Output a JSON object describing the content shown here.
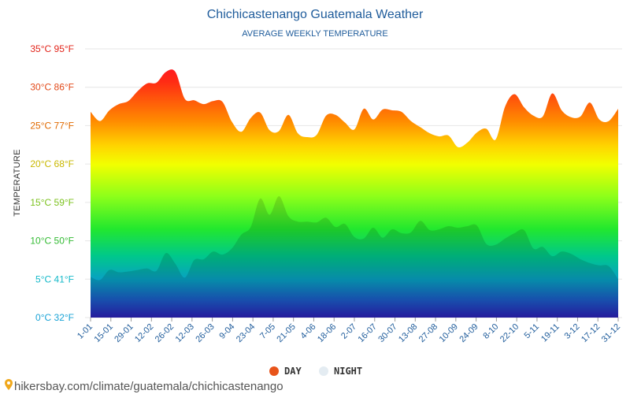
{
  "chart_data": {
    "type": "area",
    "title": "Chichicastenango Guatemala Weather",
    "subtitle": "AVERAGE WEEKLY TEMPERATURE",
    "ylabel": "TEMPERATURE",
    "ylim": [
      0,
      35
    ],
    "y_ticks": [
      {
        "value": 0,
        "label": "0°C 32°F",
        "color": "#1aa3d6"
      },
      {
        "value": 5,
        "label": "5°C 41°F",
        "color": "#14b9c9"
      },
      {
        "value": 10,
        "label": "10°C 50°F",
        "color": "#33bb33"
      },
      {
        "value": 15,
        "label": "15°C 59°F",
        "color": "#7cc21e"
      },
      {
        "value": 20,
        "label": "20°C 68°F",
        "color": "#c9b800"
      },
      {
        "value": 25,
        "label": "25°C 77°F",
        "color": "#e06a00"
      },
      {
        "value": 30,
        "label": "30°C 86°F",
        "color": "#e24a1a"
      },
      {
        "value": 35,
        "label": "35°C 95°F",
        "color": "#e2241a"
      }
    ],
    "x_tick_labels": [
      "1-01",
      "15-01",
      "29-01",
      "12-02",
      "26-02",
      "12-03",
      "26-03",
      "9-04",
      "23-04",
      "7-05",
      "21-05",
      "4-06",
      "18-06",
      "2-07",
      "16-07",
      "30-07",
      "13-08",
      "27-08",
      "10-09",
      "24-09",
      "8-10",
      "22-10",
      "5-11",
      "19-11",
      "3-12",
      "17-12",
      "31-12"
    ],
    "series": [
      {
        "name": "DAY",
        "color": "#e8541a",
        "values": [
          26.8,
          25.6,
          27.0,
          27.8,
          28.2,
          29.5,
          30.5,
          30.6,
          32.0,
          32.0,
          28.5,
          28.3,
          27.8,
          28.2,
          28.1,
          25.5,
          24.2,
          26.0,
          26.7,
          24.4,
          24.3,
          26.4,
          24.0,
          23.5,
          23.8,
          26.3,
          26.4,
          25.4,
          24.5,
          27.2,
          25.8,
          27.1,
          27.0,
          26.8,
          25.6,
          24.8,
          24.0,
          23.6,
          23.7,
          22.2,
          22.8,
          24.1,
          24.6,
          23.2,
          27.5,
          29.1,
          27.4,
          26.3,
          26.2,
          29.2,
          27.0,
          26.1,
          26.2,
          28.0,
          25.8,
          25.6,
          27.2
        ]
      },
      {
        "name": "NIGHT",
        "color": "#e4ecf2",
        "values": [
          5.3,
          4.9,
          6.2,
          5.9,
          6.0,
          6.2,
          6.4,
          6.1,
          8.4,
          7.0,
          5.2,
          7.5,
          7.6,
          8.6,
          8.2,
          9.0,
          10.8,
          11.8,
          15.5,
          13.4,
          15.8,
          13.2,
          12.5,
          12.5,
          12.4,
          13.0,
          11.8,
          12.2,
          10.5,
          10.3,
          11.7,
          10.4,
          11.5,
          11.0,
          11.1,
          12.6,
          11.4,
          11.5,
          11.9,
          11.7,
          11.9,
          12.0,
          9.6,
          9.5,
          10.3,
          11.0,
          11.4,
          9.0,
          9.2,
          8.0,
          8.6,
          8.3,
          7.6,
          7.1,
          6.8,
          6.7,
          5.0
        ]
      }
    ],
    "legend_position": "bottom-center",
    "grid": true
  },
  "source": {
    "pin_icon": "map-pin-icon",
    "text": "hikersbay.com/climate/guatemala/chichicastenango"
  }
}
